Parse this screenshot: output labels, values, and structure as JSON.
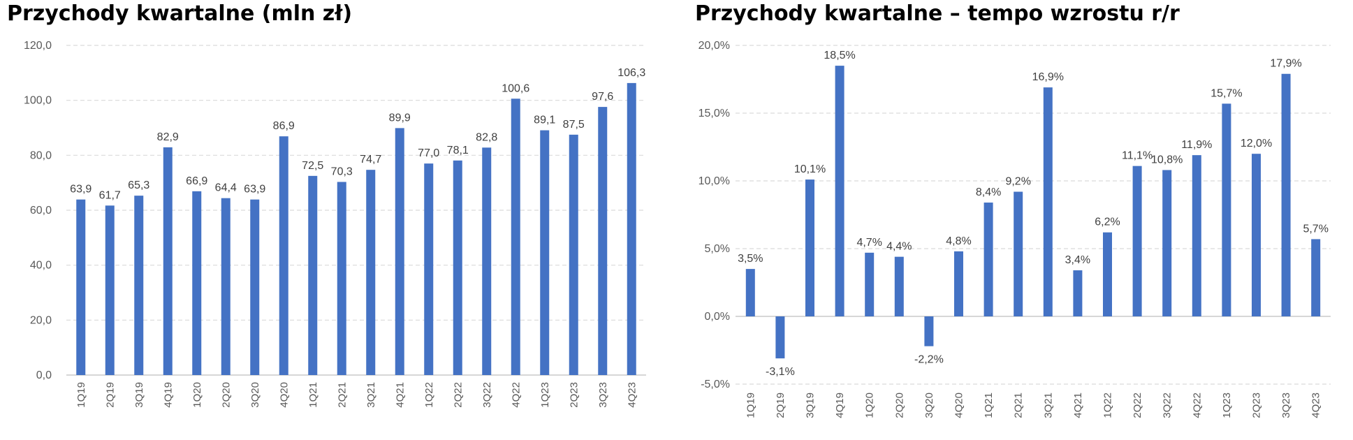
{
  "colors": {
    "bar": "#4472C4",
    "grid": "#D9D9D9",
    "axis": "#BFBFBF"
  },
  "chart_data": [
    {
      "type": "bar",
      "title": "Przychody kwartalne (mln zł)",
      "categories": [
        "1Q19",
        "2Q19",
        "3Q19",
        "4Q19",
        "1Q20",
        "2Q20",
        "3Q20",
        "4Q20",
        "1Q21",
        "2Q21",
        "3Q21",
        "4Q21",
        "1Q22",
        "2Q22",
        "3Q22",
        "4Q22",
        "1Q23",
        "2Q23",
        "3Q23",
        "4Q23"
      ],
      "values": [
        63.9,
        61.7,
        65.3,
        82.9,
        66.9,
        64.4,
        63.9,
        86.9,
        72.5,
        70.3,
        74.7,
        89.9,
        77.0,
        78.1,
        82.8,
        100.6,
        89.1,
        87.5,
        97.6,
        106.3
      ],
      "value_labels": [
        "63,9",
        "61,7",
        "65,3",
        "82,9",
        "66,9",
        "64,4",
        "63,9",
        "86,9",
        "72,5",
        "70,3",
        "74,7",
        "89,9",
        "77,0",
        "78,1",
        "82,8",
        "100,6",
        "89,1",
        "87,5",
        "97,6",
        "106,3"
      ],
      "ylim": [
        0,
        120
      ],
      "yticks": [
        0,
        20,
        40,
        60,
        80,
        100,
        120
      ],
      "ytick_labels": [
        "0,0",
        "20,0",
        "40,0",
        "60,0",
        "80,0",
        "100,0",
        "120,0"
      ],
      "grid": true,
      "xlabel": "",
      "ylabel": ""
    },
    {
      "type": "bar",
      "title": "Przychody kwartalne – tempo wzrostu r/r",
      "categories": [
        "1Q19",
        "2Q19",
        "3Q19",
        "4Q19",
        "1Q20",
        "2Q20",
        "3Q20",
        "4Q20",
        "1Q21",
        "2Q21",
        "3Q21",
        "4Q21",
        "1Q22",
        "2Q22",
        "3Q22",
        "4Q22",
        "1Q23",
        "2Q23",
        "3Q23",
        "4Q23"
      ],
      "values": [
        3.5,
        -3.1,
        10.1,
        18.5,
        4.7,
        4.4,
        -2.2,
        4.8,
        8.4,
        9.2,
        16.9,
        3.4,
        6.2,
        11.1,
        10.8,
        11.9,
        15.7,
        12.0,
        17.9,
        5.7
      ],
      "value_labels": [
        "3,5%",
        "-3,1%",
        "10,1%",
        "18,5%",
        "4,7%",
        "4,4%",
        "-2,2%",
        "4,8%",
        "8,4%",
        "9,2%",
        "16,9%",
        "3,4%",
        "6,2%",
        "11,1%",
        "10,8%",
        "11,9%",
        "15,7%",
        "12,0%",
        "17,9%",
        "5,7%"
      ],
      "ylim": [
        -5,
        20
      ],
      "yticks": [
        -5,
        0,
        5,
        10,
        15,
        20
      ],
      "ytick_labels": [
        "-5,0%",
        "0,0%",
        "5,0%",
        "10,0%",
        "15,0%",
        "20,0%"
      ],
      "grid": true,
      "xlabel": "",
      "ylabel": ""
    }
  ]
}
